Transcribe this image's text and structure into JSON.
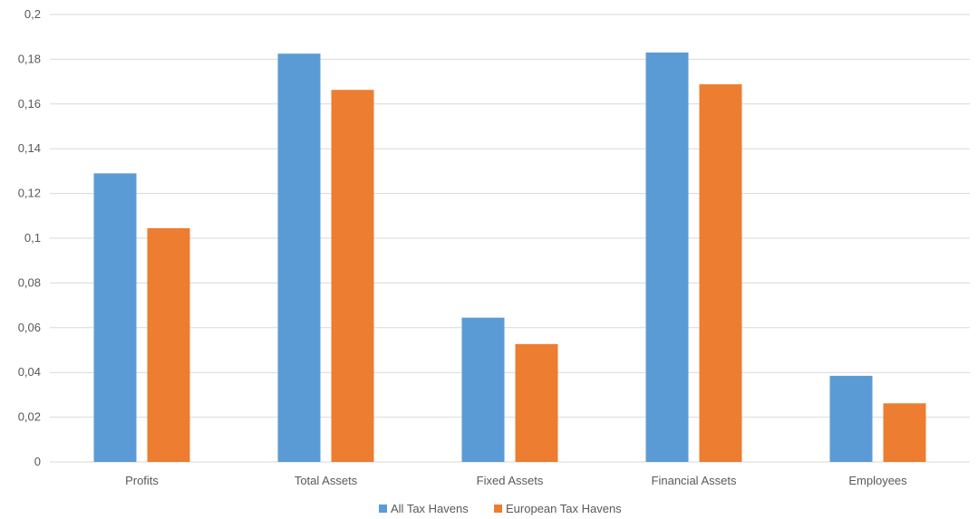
{
  "chart_data": {
    "type": "bar",
    "categories": [
      "Profits",
      "Total Assets",
      "Fixed Assets",
      "Financial Assets",
      "Employees"
    ],
    "series": [
      {
        "name": "All Tax Havens",
        "color": "#5b9bd5",
        "values": [
          0.129,
          0.1825,
          0.0645,
          0.183,
          0.0385
        ]
      },
      {
        "name": "European Tax Havens",
        "color": "#ed7d31",
        "values": [
          0.1045,
          0.1663,
          0.0527,
          0.1688,
          0.0262
        ]
      }
    ],
    "yticks": [
      "0",
      "0,02",
      "0,04",
      "0,06",
      "0,08",
      "0,1",
      "0,12",
      "0,14",
      "0,16",
      "0,18",
      "0,2"
    ],
    "ylim": [
      0,
      0.2
    ],
    "grid": true,
    "legend_position": "bottom"
  }
}
